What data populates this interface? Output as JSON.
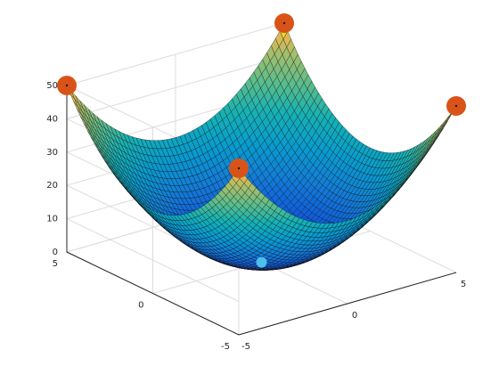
{
  "chart_data": {
    "type": "surface",
    "function": "z = x^2 + y^2",
    "x_range": [
      -5,
      5
    ],
    "y_range": [
      -5,
      5
    ],
    "zlim": [
      0,
      50
    ],
    "z_ticks": [
      "0",
      "10",
      "20",
      "30",
      "40",
      "50"
    ],
    "x_ticks": [
      "-5",
      "0",
      "5"
    ],
    "y_ticks": [
      "-5",
      "0",
      "5"
    ],
    "colormap": "parula",
    "grid": true,
    "markers": [
      {
        "x": -5,
        "y": 5,
        "z": 50,
        "color": "#d95319"
      },
      {
        "x": 5,
        "y": 5,
        "z": 50,
        "color": "#d95319"
      },
      {
        "x": 5,
        "y": -5,
        "z": 50,
        "color": "#d95319"
      },
      {
        "x": -5,
        "y": -5,
        "z": 50,
        "color": "#d95319"
      },
      {
        "x": 0,
        "y": 0,
        "z": 0,
        "color": "#4dbeee"
      }
    ]
  }
}
